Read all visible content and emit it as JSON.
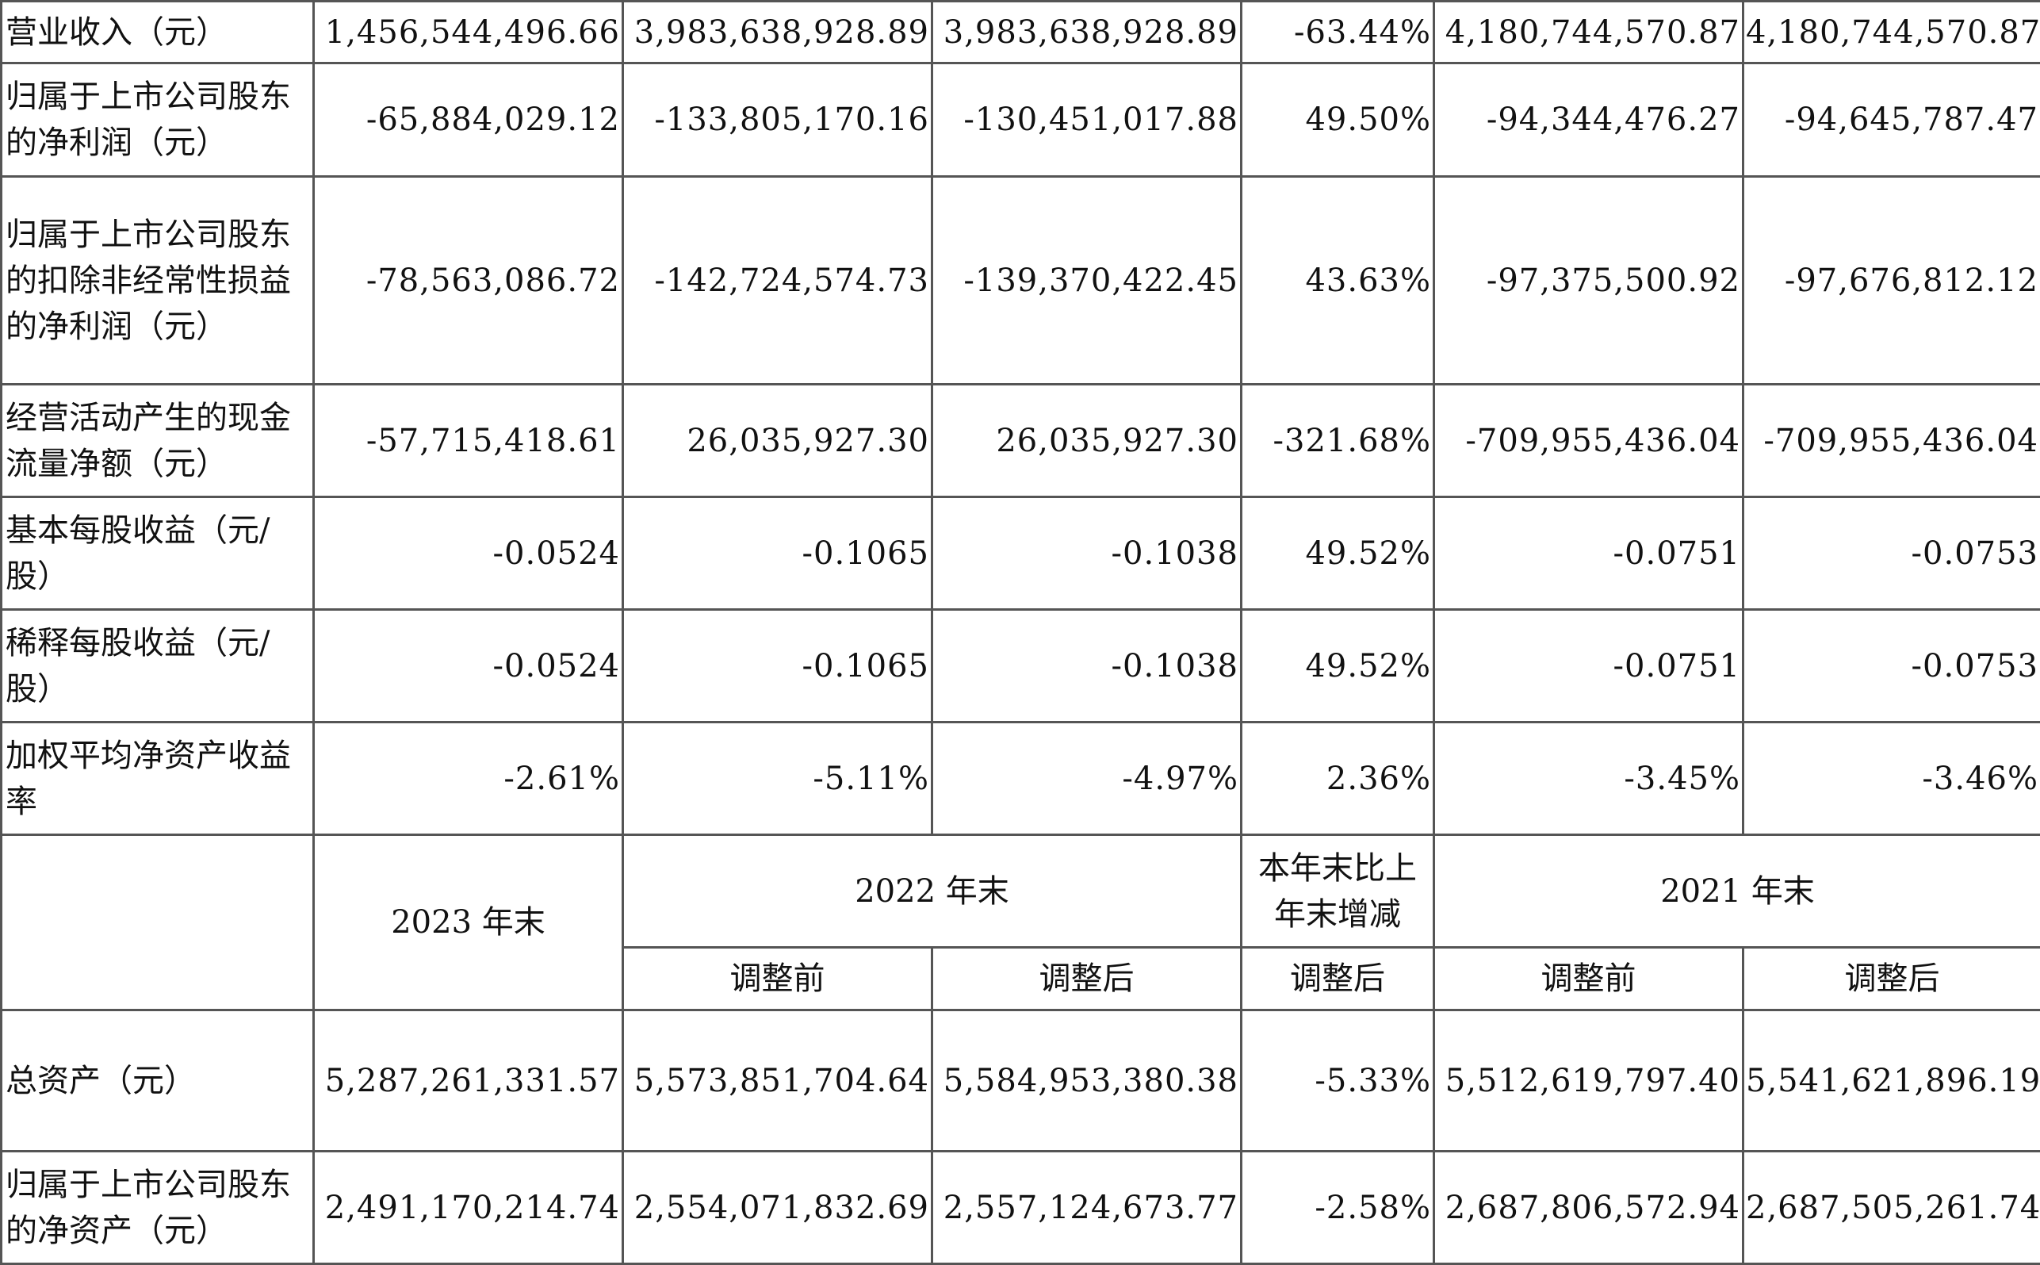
{
  "rows_top": [
    {
      "label": "营业收入（元）",
      "values": [
        "1,456,544,496.66",
        "3,983,638,928.89",
        "3,983,638,928.89",
        "-63.44%",
        "4,180,744,570.87",
        "4,180,744,570.87"
      ]
    },
    {
      "label": "归属于上市公司股东的净利润（元）",
      "values": [
        "-65,884,029.12",
        "-133,805,170.16",
        "-130,451,017.88",
        "49.50%",
        "-94,344,476.27",
        "-94,645,787.47"
      ]
    },
    {
      "label": "归属于上市公司股东的扣除非经常性损益的净利润（元）",
      "values": [
        "-78,563,086.72",
        "-142,724,574.73",
        "-139,370,422.45",
        "43.63%",
        "-97,375,500.92",
        "-97,676,812.12"
      ]
    },
    {
      "label": "经营活动产生的现金流量净额（元）",
      "values": [
        "-57,715,418.61",
        "26,035,927.30",
        "26,035,927.30",
        "-321.68%",
        "-709,955,436.04",
        "-709,955,436.04"
      ]
    },
    {
      "label": "基本每股收益（元/股）",
      "values": [
        "-0.0524",
        "-0.1065",
        "-0.1038",
        "49.52%",
        "-0.0751",
        "-0.0753"
      ]
    },
    {
      "label": "稀释每股收益（元/股）",
      "values": [
        "-0.0524",
        "-0.1065",
        "-0.1038",
        "49.52%",
        "-0.0751",
        "-0.0753"
      ]
    },
    {
      "label": "加权平均净资产收益率",
      "values": [
        "-2.61%",
        "-5.11%",
        "-4.97%",
        "2.36%",
        "-3.45%",
        "-3.46%"
      ]
    }
  ],
  "header": {
    "blank": "",
    "y2023": "2023 年末",
    "y2022": "2022 年末",
    "change": "本年末比上年末增减",
    "y2021": "2021 年末",
    "sub": [
      "调整前",
      "调整后",
      "调整后",
      "调整前",
      "调整后"
    ]
  },
  "rows_bottom": [
    {
      "label": "总资产（元）",
      "values": [
        "5,287,261,331.57",
        "5,573,851,704.64",
        "5,584,953,380.38",
        "-5.33%",
        "5,512,619,797.40",
        "5,541,621,896.19"
      ]
    },
    {
      "label": "归属于上市公司股东的净资产（元）",
      "values": [
        "2,491,170,214.74",
        "2,554,071,832.69",
        "2,557,124,673.77",
        "-2.58%",
        "2,687,806,572.94",
        "2,687,505,261.74"
      ]
    }
  ]
}
